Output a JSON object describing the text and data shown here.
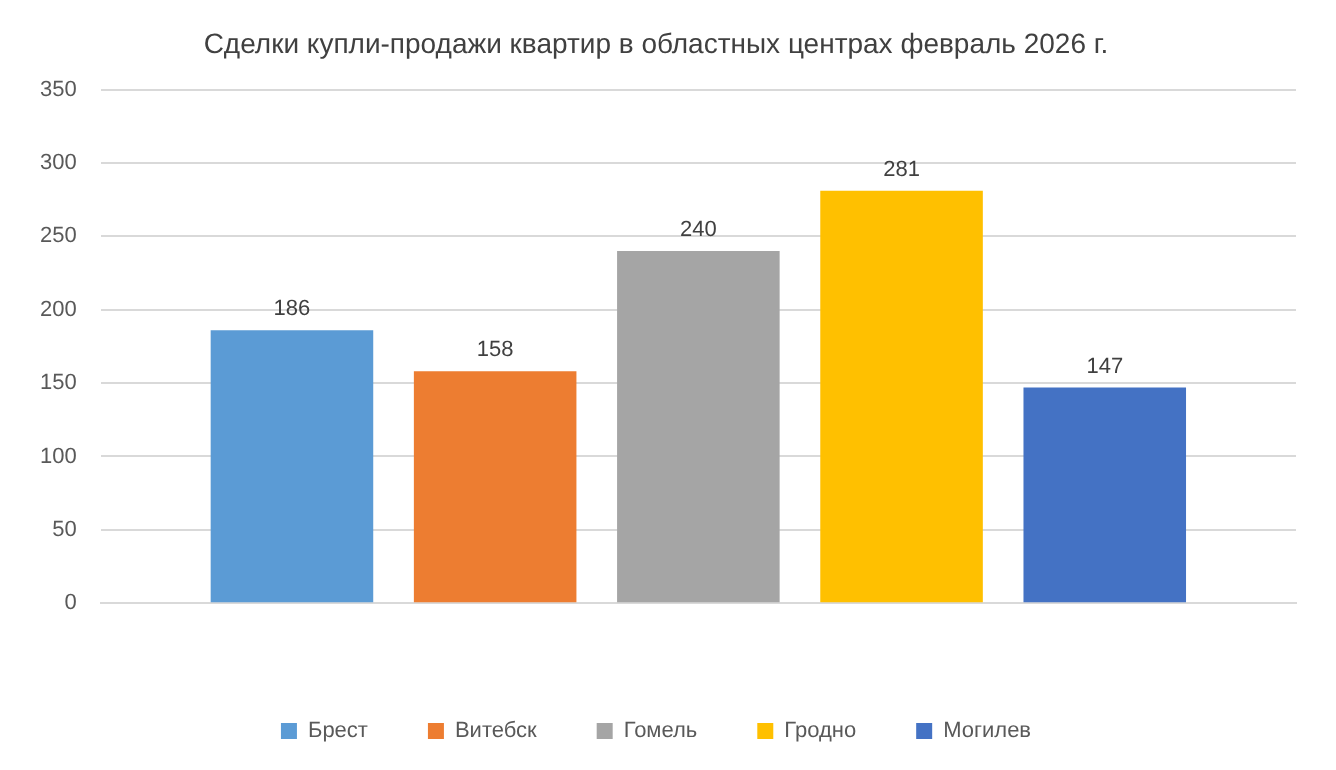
{
  "chart_data": {
    "type": "bar",
    "title": "Сделки купли-продажи квартир в областных центрах февраль 2026 г.",
    "categories": [
      null
    ],
    "series": [
      {
        "name": "Брест",
        "color": "#5b9bd5",
        "values": [
          186
        ]
      },
      {
        "name": "Витебск",
        "color": "#ed7d31",
        "values": [
          158
        ]
      },
      {
        "name": "Гомель",
        "color": "#a5a5a5",
        "values": [
          240
        ]
      },
      {
        "name": "Гродно",
        "color": "#ffc000",
        "values": [
          281
        ]
      },
      {
        "name": "Могилев",
        "color": "#4472c4",
        "values": [
          147
        ]
      }
    ],
    "ylim": [
      0,
      350
    ],
    "yticks": [
      0,
      50,
      100,
      150,
      200,
      250,
      300,
      350
    ],
    "grid": "y",
    "legend": "bottom",
    "data_labels": true
  }
}
